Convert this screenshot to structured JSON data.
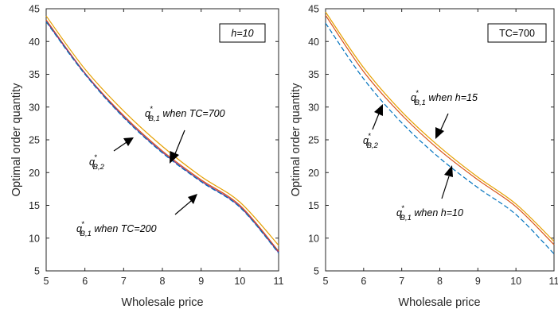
{
  "chart_data": [
    {
      "type": "line",
      "xlabel": "Wholesale price",
      "ylabel": "Optimal order quantity",
      "xlim": [
        5,
        11
      ],
      "ylim": [
        5,
        45
      ],
      "xticks": [
        "5",
        "6",
        "7",
        "8",
        "9",
        "10",
        "11"
      ],
      "yticks": [
        "5",
        "10",
        "15",
        "20",
        "25",
        "30",
        "35",
        "40",
        "45"
      ],
      "legend_box": "h=10",
      "x": [
        5,
        6,
        7,
        8,
        9,
        10,
        11
      ],
      "series": [
        {
          "color": "#e6a000",
          "style": "solid",
          "values": [
            43.9,
            35.8,
            29.4,
            24.0,
            19.4,
            15.5,
            8.9
          ]
        },
        {
          "color": "#d95319",
          "style": "solid",
          "values": [
            43.3,
            35.2,
            28.7,
            23.3,
            18.9,
            15.0,
            8.0
          ]
        },
        {
          "color": "#7e2f8e",
          "style": "solid",
          "values": [
            43.1,
            35.1,
            28.5,
            23.1,
            18.7,
            14.8,
            7.8
          ]
        },
        {
          "color": "#0072bd",
          "style": "dashed",
          "values": [
            43.0,
            35.0,
            28.4,
            23.0,
            18.6,
            14.7,
            7.7
          ]
        }
      ],
      "annotations": [
        {
          "base": "q",
          "sup": "*",
          "sub": "B,1",
          "rest": " when TC=700"
        },
        {
          "base": "q",
          "sup": "*",
          "sub": "B,2",
          "rest": ""
        },
        {
          "base": "q",
          "sup": "*",
          "sub": "B,1",
          "rest": " when TC=200"
        }
      ]
    },
    {
      "type": "line",
      "xlabel": "Wholesale price",
      "ylabel": "Optimal order quantity",
      "xlim": [
        5,
        11
      ],
      "ylim": [
        5,
        45
      ],
      "xticks": [
        "5",
        "6",
        "7",
        "8",
        "9",
        "10",
        "11"
      ],
      "yticks": [
        "5",
        "10",
        "15",
        "20",
        "25",
        "30",
        "35",
        "40",
        "45"
      ],
      "legend_box": "TC=700",
      "x": [
        5,
        6,
        7,
        8,
        9,
        10,
        11
      ],
      "series": [
        {
          "color": "#e6a000",
          "style": "solid",
          "values": [
            44.5,
            36.0,
            29.3,
            23.9,
            19.3,
            15.2,
            9.5
          ]
        },
        {
          "color": "#d95319",
          "style": "solid",
          "values": [
            44.0,
            35.4,
            28.8,
            23.4,
            18.9,
            14.8,
            9.0
          ]
        },
        {
          "color": "#0072bd",
          "style": "dashed",
          "values": [
            42.8,
            34.3,
            27.6,
            22.2,
            17.7,
            13.6,
            7.6
          ]
        }
      ],
      "annotations": [
        {
          "base": "q",
          "sup": "*",
          "sub": "B,1",
          "rest": " when h=15"
        },
        {
          "base": "q",
          "sup": "*",
          "sub": "B,2",
          "rest": ""
        },
        {
          "base": "q",
          "sup": "*",
          "sub": "B,1",
          "rest": " when h=10"
        }
      ]
    }
  ]
}
